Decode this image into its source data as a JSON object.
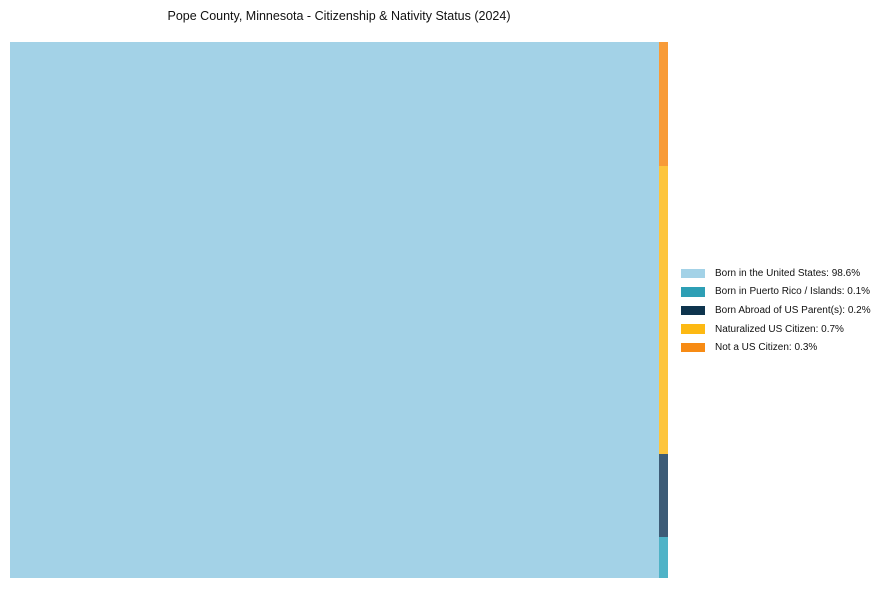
{
  "chart_data": {
    "type": "treemap",
    "title": "Pope County, Minnesota - Citizenship & Nativity Status (2024)",
    "values_unit": "%",
    "legend_position": "center-right",
    "layout": "first series fills full-height left slice; remaining series stacked in right column, last series on top",
    "series": [
      {
        "key": "born-in-us",
        "name": "Born in the United States",
        "value": 98.6,
        "label": "Born in the United States: 98.6%",
        "fill": "#a3d2e7",
        "legend_color": "#a3d2e7"
      },
      {
        "key": "born-puerto-rico-islands",
        "name": "Born in Puerto Rico / Islands",
        "value": 0.1,
        "label": "Born in Puerto Rico / Islands: 0.1%",
        "fill": "#4fb3c7",
        "legend_color": "#2d9fb5"
      },
      {
        "key": "born-abroad-us-parents",
        "name": "Born Abroad of US Parent(s)",
        "value": 0.2,
        "label": "Born Abroad of US Parent(s): 0.2%",
        "fill": "#3d5c77",
        "legend_color": "#0e344d"
      },
      {
        "key": "naturalized-us-citizen",
        "name": "Naturalized US Citizen",
        "value": 0.7,
        "label": "Naturalized US Citizen: 0.7%",
        "fill": "#fdc53d",
        "legend_color": "#fdb913"
      },
      {
        "key": "not-us-citizen",
        "name": "Not a US Citizen",
        "value": 0.3,
        "label": "Not a US Citizen: 0.3%",
        "fill": "#f89b38",
        "legend_color": "#f78b14"
      }
    ]
  }
}
